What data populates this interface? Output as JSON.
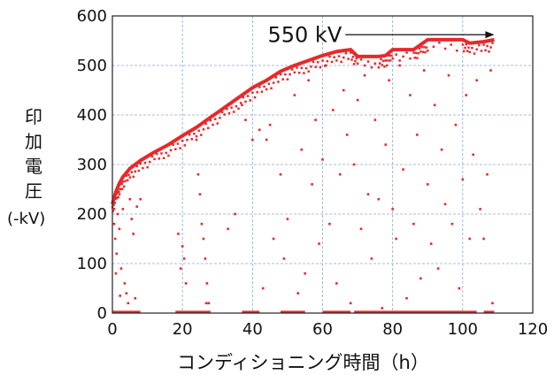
{
  "chart_data": {
    "type": "scatter",
    "xlabel": "コンディショニング時間（h）",
    "ylabel_chars": [
      "印",
      "加",
      "電",
      "圧"
    ],
    "ylabel_unit": "(-kV)",
    "xlim": [
      0,
      120
    ],
    "ylim": [
      0,
      600
    ],
    "xticks": [
      0,
      20,
      40,
      60,
      80,
      100,
      120
    ],
    "yticks": [
      0,
      100,
      200,
      300,
      400,
      500,
      600
    ],
    "grid": true,
    "colors": {
      "series": "#e8282b",
      "grid": "#8aa8d6",
      "axis": "#222222"
    },
    "annotation": {
      "text": "550 kV",
      "from": [
        66,
        562
      ],
      "to": [
        109,
        560
      ]
    },
    "envelope": [
      [
        0,
        220
      ],
      [
        1,
        245
      ],
      [
        2,
        262
      ],
      [
        3,
        275
      ],
      [
        5,
        292
      ],
      [
        8,
        308
      ],
      [
        12,
        325
      ],
      [
        16,
        340
      ],
      [
        20,
        358
      ],
      [
        24,
        375
      ],
      [
        28,
        395
      ],
      [
        32,
        415
      ],
      [
        36,
        435
      ],
      [
        40,
        455
      ],
      [
        44,
        470
      ],
      [
        48,
        488
      ],
      [
        52,
        500
      ],
      [
        56,
        510
      ],
      [
        60,
        520
      ],
      [
        64,
        528
      ],
      [
        68,
        532
      ],
      [
        70,
        518
      ],
      [
        76,
        518
      ],
      [
        78,
        520
      ],
      [
        80,
        532
      ],
      [
        86,
        532
      ],
      [
        88,
        542
      ],
      [
        90,
        552
      ],
      [
        100,
        552
      ],
      [
        102,
        545
      ],
      [
        106,
        548
      ],
      [
        109,
        552
      ]
    ],
    "scatter_points": [
      [
        0.5,
        180
      ],
      [
        0.8,
        150
      ],
      [
        1.2,
        120
      ],
      [
        1.5,
        200
      ],
      [
        2.0,
        170
      ],
      [
        2.5,
        90
      ],
      [
        3.0,
        210
      ],
      [
        3.5,
        60
      ],
      [
        4.0,
        40
      ],
      [
        4.5,
        20
      ],
      [
        5.0,
        230
      ],
      [
        5.5,
        190
      ],
      [
        6.0,
        160
      ],
      [
        6.5,
        30
      ],
      [
        7.0,
        215
      ],
      [
        8.0,
        230
      ],
      [
        1.0,
        80
      ],
      [
        2.2,
        35
      ],
      [
        18.8,
        160
      ],
      [
        19.5,
        90
      ],
      [
        20.0,
        135
      ],
      [
        20.5,
        110
      ],
      [
        21.0,
        60
      ],
      [
        24.0,
        350
      ],
      [
        24.5,
        280
      ],
      [
        25.0,
        240
      ],
      [
        25.5,
        180
      ],
      [
        26.0,
        150
      ],
      [
        26.5,
        110
      ],
      [
        27.0,
        60
      ],
      [
        27.5,
        20
      ],
      [
        26.8,
        20
      ],
      [
        33,
        170
      ],
      [
        35,
        200
      ],
      [
        37,
        420
      ],
      [
        38,
        390
      ],
      [
        40,
        350
      ],
      [
        42,
        370
      ],
      [
        43,
        50
      ],
      [
        44,
        350
      ],
      [
        45,
        380
      ],
      [
        46,
        150
      ],
      [
        48,
        280
      ],
      [
        49,
        110
      ],
      [
        50,
        190
      ],
      [
        52,
        440
      ],
      [
        53,
        40
      ],
      [
        54,
        330
      ],
      [
        55,
        80
      ],
      [
        56,
        470
      ],
      [
        57,
        260
      ],
      [
        58,
        390
      ],
      [
        59,
        140
      ],
      [
        60,
        310
      ],
      [
        61,
        500
      ],
      [
        62,
        180
      ],
      [
        63,
        410
      ],
      [
        64,
        60
      ],
      [
        65,
        280
      ],
      [
        66,
        450
      ],
      [
        67,
        360
      ],
      [
        68,
        20
      ],
      [
        69,
        300
      ],
      [
        70,
        430
      ],
      [
        71,
        170
      ],
      [
        72,
        480
      ],
      [
        73,
        240
      ],
      [
        74,
        110
      ],
      [
        75,
        390
      ],
      [
        76,
        230
      ],
      [
        77,
        10
      ],
      [
        78,
        340
      ],
      [
        79,
        470
      ],
      [
        80,
        210
      ],
      [
        81,
        150
      ],
      [
        82,
        500
      ],
      [
        83,
        290
      ],
      [
        84,
        30
      ],
      [
        85,
        440
      ],
      [
        86,
        180
      ],
      [
        87,
        360
      ],
      [
        88,
        70
      ],
      [
        89,
        490
      ],
      [
        90,
        260
      ],
      [
        91,
        140
      ],
      [
        92,
        420
      ],
      [
        93,
        90
      ],
      [
        94,
        330
      ],
      [
        95,
        220
      ],
      [
        96,
        480
      ],
      [
        97,
        180
      ],
      [
        98,
        380
      ],
      [
        99,
        50
      ],
      [
        100,
        270
      ],
      [
        101,
        440
      ],
      [
        102,
        150
      ],
      [
        103,
        320
      ],
      [
        104,
        470
      ],
      [
        105,
        210
      ],
      [
        106,
        150
      ],
      [
        107,
        280
      ],
      [
        108,
        490
      ],
      [
        108.5,
        20
      ]
    ],
    "baseline_segments": [
      [
        0,
        8
      ],
      [
        18,
        28
      ],
      [
        37,
        42
      ],
      [
        48,
        55
      ],
      [
        60,
        68
      ],
      [
        69,
        104
      ],
      [
        106,
        109
      ]
    ]
  }
}
